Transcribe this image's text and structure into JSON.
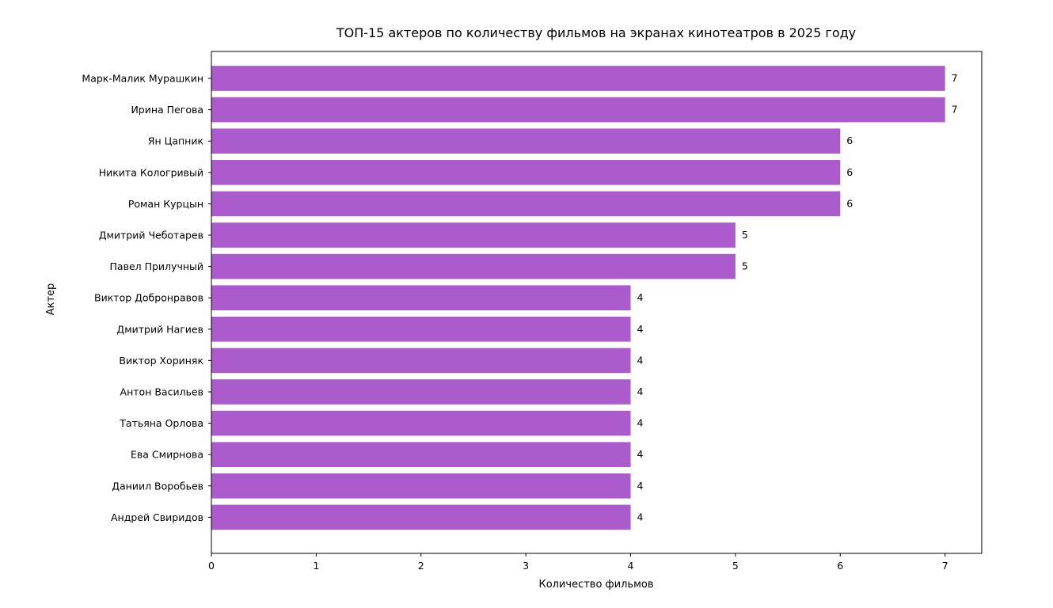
{
  "chart_data": {
    "type": "bar",
    "orientation": "horizontal",
    "title": "ТОП-15 актеров по количеству фильмов на экранах кинотеатров в 2025 году",
    "xlabel": "Количество фильмов",
    "ylabel": "Актер",
    "xlim": [
      0,
      7.35
    ],
    "x_ticks": [
      0,
      1,
      2,
      3,
      4,
      5,
      6,
      7
    ],
    "grid": false,
    "bar_color": "#AB5BCB",
    "categories": [
      "Марк-Малик Мурашкин",
      "Ирина Пегова",
      "Ян Цапник",
      "Никита Кологривый",
      "Роман Курцын",
      "Дмитрий Чеботарев",
      "Павел Прилучный",
      "Виктор Добронравов",
      "Дмитрий Нагиев",
      "Виктор Хориняк",
      "Антон Васильев",
      "Татьяна Орлова",
      "Ева Смирнова",
      "Даниил Воробьев",
      "Андрей Свиридов"
    ],
    "values": [
      7,
      7,
      6,
      6,
      6,
      5,
      5,
      4,
      4,
      4,
      4,
      4,
      4,
      4,
      4
    ]
  }
}
